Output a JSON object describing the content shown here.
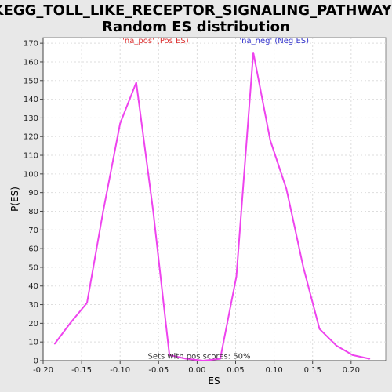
{
  "chart_data": {
    "type": "line",
    "title_line1": "KEGG_TOLL_LIKE_RECEPTOR_SIGNALING_PATHWAY:",
    "title_line2": "Random ES distribution",
    "xlabel": "ES",
    "ylabel": "P(ES)",
    "xlim": [
      -0.2,
      0.245
    ],
    "ylim": [
      0,
      173
    ],
    "x_ticks": [
      -0.2,
      -0.15,
      -0.1,
      -0.05,
      0.0,
      0.05,
      0.1,
      0.15,
      0.2
    ],
    "x_tick_labels": [
      "-0.20",
      "-0.15",
      "-0.10",
      "-0.05",
      "0.00",
      "0.05",
      "0.10",
      "0.15",
      "0.20"
    ],
    "y_ticks": [
      0,
      10,
      20,
      30,
      40,
      50,
      60,
      70,
      80,
      90,
      100,
      110,
      120,
      130,
      140,
      150,
      160,
      170
    ],
    "grid": true,
    "series": [
      {
        "color": "#ee44ee",
        "x": [
          -0.185,
          -0.165,
          -0.143,
          -0.122,
          -0.1,
          -0.079,
          -0.057,
          -0.036,
          -0.014,
          0.008,
          0.03,
          0.051,
          0.073,
          0.095,
          0.116,
          0.138,
          0.159,
          0.181,
          0.202,
          0.224
        ],
        "y": [
          9,
          20,
          31,
          80,
          127,
          149,
          80,
          3,
          1,
          0,
          1,
          45,
          165,
          118,
          92,
          50,
          17,
          8,
          3,
          1
        ]
      }
    ],
    "annotations": [
      {
        "text": "'na_pos' (Pos ES)",
        "x": -0.097,
        "y": 170,
        "color": "#dd3333"
      },
      {
        "text": "'na_neg' (Neg ES)",
        "x": 0.055,
        "y": 170,
        "color": "#3333cc"
      },
      {
        "text": "Sets with pos scores: 50%",
        "x": -0.064,
        "y": 1,
        "color": "#333333"
      }
    ]
  }
}
